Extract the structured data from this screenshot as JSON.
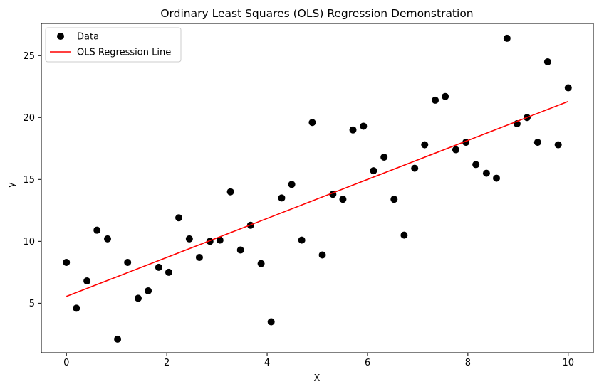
{
  "chart_data": {
    "type": "scatter",
    "title": "Ordinary Least Squares (OLS) Regression Demonstration",
    "xlabel": "X",
    "ylabel": "y",
    "xlim": [
      -0.5,
      10.5
    ],
    "ylim": [
      1.0,
      27.6
    ],
    "xticks": [
      0,
      2,
      4,
      6,
      8,
      10
    ],
    "yticks": [
      5,
      10,
      15,
      20,
      25
    ],
    "grid": false,
    "legend_position": "top-left",
    "series": [
      {
        "name": "Data",
        "kind": "scatter",
        "color": "#000000",
        "points": [
          {
            "x": 0.0,
            "y": 8.3
          },
          {
            "x": 0.2,
            "y": 4.6
          },
          {
            "x": 0.41,
            "y": 6.8
          },
          {
            "x": 0.61,
            "y": 10.9
          },
          {
            "x": 0.82,
            "y": 10.2
          },
          {
            "x": 1.02,
            "y": 2.1
          },
          {
            "x": 1.22,
            "y": 8.3
          },
          {
            "x": 1.43,
            "y": 5.4
          },
          {
            "x": 1.63,
            "y": 6.0
          },
          {
            "x": 1.84,
            "y": 7.9
          },
          {
            "x": 2.04,
            "y": 7.5
          },
          {
            "x": 2.24,
            "y": 11.9
          },
          {
            "x": 2.45,
            "y": 10.2
          },
          {
            "x": 2.65,
            "y": 8.7
          },
          {
            "x": 2.86,
            "y": 10.0
          },
          {
            "x": 3.06,
            "y": 10.1
          },
          {
            "x": 3.27,
            "y": 14.0
          },
          {
            "x": 3.47,
            "y": 9.3
          },
          {
            "x": 3.67,
            "y": 11.3
          },
          {
            "x": 3.88,
            "y": 8.2
          },
          {
            "x": 4.08,
            "y": 3.5
          },
          {
            "x": 4.29,
            "y": 13.5
          },
          {
            "x": 4.49,
            "y": 14.6
          },
          {
            "x": 4.69,
            "y": 10.1
          },
          {
            "x": 4.9,
            "y": 19.6
          },
          {
            "x": 5.1,
            "y": 8.9
          },
          {
            "x": 5.31,
            "y": 13.8
          },
          {
            "x": 5.51,
            "y": 13.4
          },
          {
            "x": 5.71,
            "y": 19.0
          },
          {
            "x": 5.92,
            "y": 19.3
          },
          {
            "x": 6.12,
            "y": 15.7
          },
          {
            "x": 6.33,
            "y": 16.8
          },
          {
            "x": 6.53,
            "y": 13.4
          },
          {
            "x": 6.73,
            "y": 10.5
          },
          {
            "x": 6.94,
            "y": 15.9
          },
          {
            "x": 7.14,
            "y": 17.8
          },
          {
            "x": 7.35,
            "y": 21.4
          },
          {
            "x": 7.55,
            "y": 21.7
          },
          {
            "x": 7.76,
            "y": 17.4
          },
          {
            "x": 7.96,
            "y": 18.0
          },
          {
            "x": 8.16,
            "y": 16.2
          },
          {
            "x": 8.37,
            "y": 15.5
          },
          {
            "x": 8.57,
            "y": 15.1
          },
          {
            "x": 8.78,
            "y": 26.4
          },
          {
            "x": 8.98,
            "y": 19.5
          },
          {
            "x": 9.18,
            "y": 20.0
          },
          {
            "x": 9.39,
            "y": 18.0
          },
          {
            "x": 9.59,
            "y": 24.5
          },
          {
            "x": 9.8,
            "y": 17.8
          },
          {
            "x": 10.0,
            "y": 22.4
          }
        ]
      },
      {
        "name": "OLS Regression Line",
        "kind": "line",
        "color": "#ff0000",
        "points": [
          {
            "x": 0.0,
            "y": 5.55
          },
          {
            "x": 10.0,
            "y": 21.3
          }
        ]
      }
    ]
  }
}
